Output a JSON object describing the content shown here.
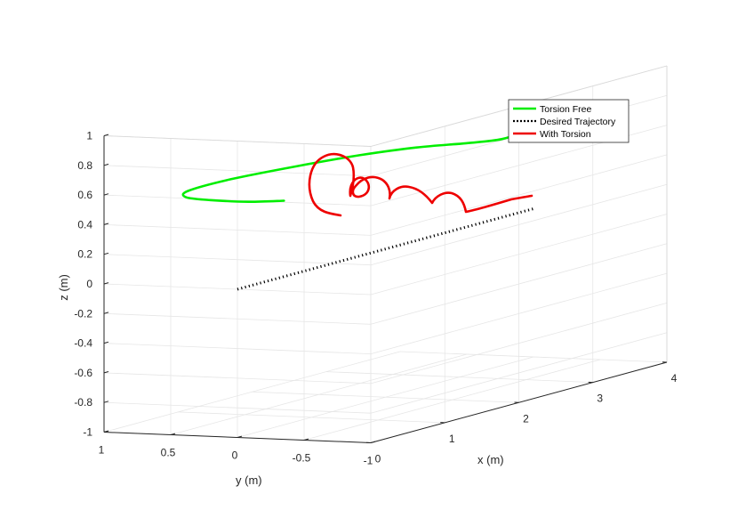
{
  "chart_data": {
    "type": "line3d",
    "xlabel": "x (m)",
    "ylabel": "y (m)",
    "zlabel": "z (m)",
    "xlim": [
      0,
      4
    ],
    "ylim": [
      -1,
      1
    ],
    "zlim": [
      -1,
      1
    ],
    "x_ticks": [
      "0",
      "1",
      "2",
      "3",
      "4"
    ],
    "y_ticks": [
      "1",
      "0.5",
      "0",
      "-0.5",
      "-1"
    ],
    "z_ticks": [
      "-1",
      "-0.8",
      "-0.6",
      "-0.4",
      "-0.2",
      "0",
      "0.2",
      "0.4",
      "0.6",
      "0.8",
      "1"
    ],
    "grid": true,
    "legend_position": "top-right",
    "series": [
      {
        "name": "Torsion Free",
        "color": "#00ee00",
        "style": "solid",
        "points": [
          [
            0.9,
            0.15,
            0.47
          ],
          [
            0.6,
            0.25,
            0.5
          ],
          [
            0.35,
            0.4,
            0.54
          ],
          [
            0.3,
            0.55,
            0.56
          ],
          [
            0.45,
            0.62,
            0.58
          ],
          [
            0.9,
            0.55,
            0.6
          ],
          [
            1.5,
            0.4,
            0.61
          ],
          [
            2.1,
            0.25,
            0.61
          ],
          [
            2.6,
            0.1,
            0.6
          ],
          [
            3.0,
            -0.05,
            0.58
          ],
          [
            3.3,
            -0.15,
            0.57
          ],
          [
            3.6,
            -0.18,
            0.59
          ],
          [
            3.95,
            -0.2,
            0.6
          ]
        ]
      },
      {
        "name": "Desired Trajectory",
        "color": "#000000",
        "style": "dotted",
        "points": [
          [
            0,
            0,
            0
          ],
          [
            4,
            0,
            0
          ]
        ]
      },
      {
        "name": "With Torsion",
        "color": "#ee0000",
        "style": "solid",
        "points": []
      }
    ]
  }
}
